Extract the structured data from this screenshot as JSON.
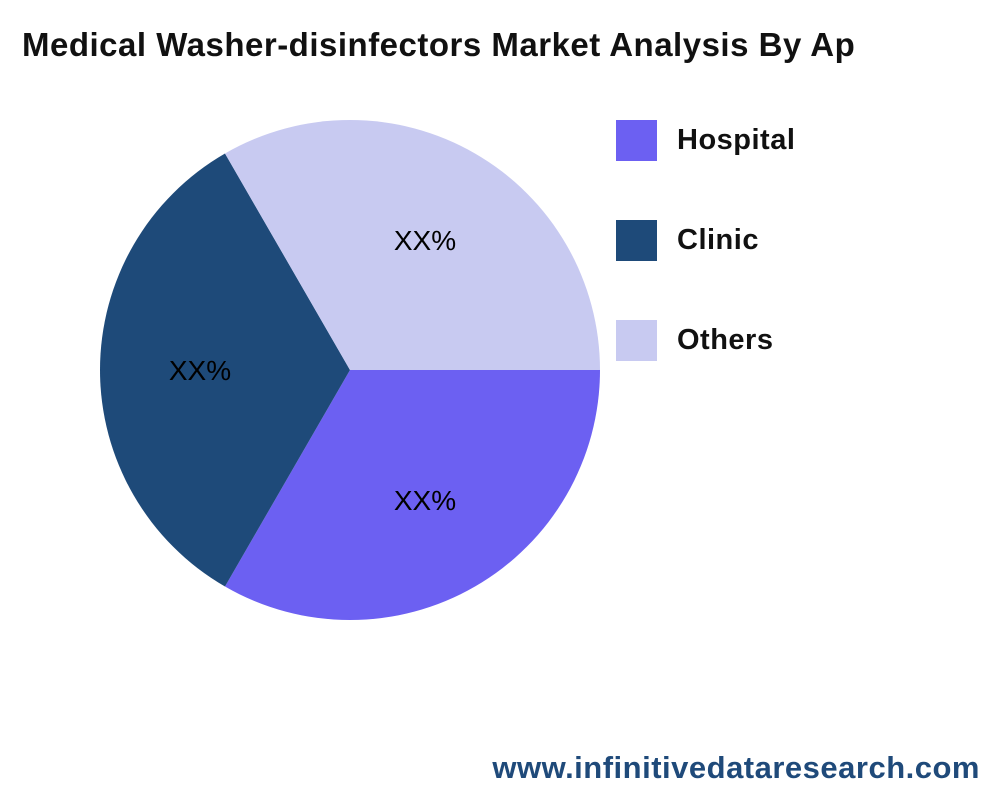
{
  "chart_data": {
    "type": "pie",
    "title": "Medical Washer-disinfectors Market Analysis By Ap",
    "slices": [
      {
        "name": "Hospital",
        "value": 33.33,
        "label": "XX%",
        "color": "#6c60f2"
      },
      {
        "name": "Clinic",
        "value": 33.33,
        "label": "XX%",
        "color": "#1e4a79"
      },
      {
        "name": "Others",
        "value": 33.33,
        "label": "XX%",
        "color": "#c8caf1"
      }
    ],
    "start_angle_deg": 0,
    "direction": "clockwise",
    "legend_placement": "right"
  },
  "watermark": "www.infinitivedataresearch.com"
}
